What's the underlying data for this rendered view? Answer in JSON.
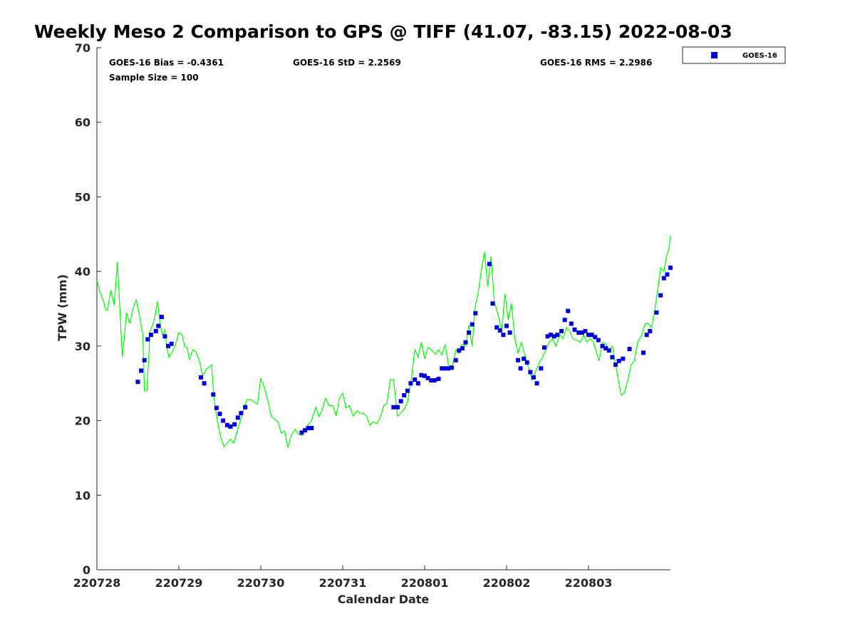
{
  "chart_data": {
    "type": "scatter",
    "title": "Weekly Meso 2 Comparison to GPS @ TIFF (41.07, -83.15) 2022-08-03",
    "xlabel": "Calendar Date",
    "ylabel": "TPW (mm)",
    "xlim": [
      0,
      7
    ],
    "ylim": [
      0,
      70
    ],
    "x_unit": "days after 220728 00Z",
    "x_ticks": [
      0,
      1,
      2,
      3,
      4,
      5,
      6
    ],
    "x_tick_labels": [
      "220728",
      "220729",
      "220730",
      "220731",
      "220801",
      "220802",
      "220803"
    ],
    "y_ticks": [
      0,
      10,
      20,
      30,
      40,
      50,
      60,
      70
    ],
    "y_tick_labels": [
      "0",
      "10",
      "20",
      "30",
      "40",
      "50",
      "60",
      "70"
    ],
    "grid": false,
    "legend_position": "outside-top-right",
    "stats": {
      "bias": "GOES-16 Bias = -0.4361",
      "std": "GOES-16 StD = 2.2569",
      "rms": "GOES-16 RMS = 2.2986",
      "sample": "Sample Size = 100"
    },
    "series": [
      {
        "name": "GOES-16",
        "kind": "scatter",
        "marker": "square",
        "color": "#0000d8",
        "points": [
          [
            0.5,
            25.2
          ],
          [
            0.54,
            26.7
          ],
          [
            0.58,
            28.1
          ],
          [
            0.62,
            30.9
          ],
          [
            0.66,
            31.5
          ],
          [
            0.72,
            32.0
          ],
          [
            0.75,
            32.7
          ],
          [
            0.79,
            33.9
          ],
          [
            0.83,
            31.3
          ],
          [
            0.87,
            30.0
          ],
          [
            0.91,
            30.3
          ],
          [
            1.27,
            25.8
          ],
          [
            1.31,
            25.0
          ],
          [
            1.42,
            23.5
          ],
          [
            1.46,
            21.7
          ],
          [
            1.5,
            20.9
          ],
          [
            1.54,
            20.0
          ],
          [
            1.59,
            19.4
          ],
          [
            1.63,
            19.2
          ],
          [
            1.68,
            19.5
          ],
          [
            1.72,
            20.4
          ],
          [
            1.76,
            21.0
          ],
          [
            1.81,
            21.8
          ],
          [
            2.5,
            18.4
          ],
          [
            2.54,
            18.7
          ],
          [
            2.58,
            19.0
          ],
          [
            2.62,
            19.0
          ],
          [
            3.62,
            21.8
          ],
          [
            3.67,
            21.8
          ],
          [
            3.71,
            22.6
          ],
          [
            3.75,
            23.4
          ],
          [
            3.79,
            24.0
          ],
          [
            3.83,
            25.0
          ],
          [
            3.88,
            25.5
          ],
          [
            3.92,
            25.0
          ],
          [
            3.96,
            26.1
          ],
          [
            4.0,
            26.0
          ],
          [
            4.04,
            25.7
          ],
          [
            4.08,
            25.4
          ],
          [
            4.12,
            25.4
          ],
          [
            4.17,
            25.6
          ],
          [
            4.21,
            27.0
          ],
          [
            4.25,
            27.0
          ],
          [
            4.29,
            27.0
          ],
          [
            4.33,
            27.1
          ],
          [
            4.38,
            28.1
          ],
          [
            4.42,
            29.4
          ],
          [
            4.46,
            29.7
          ],
          [
            4.5,
            30.5
          ],
          [
            4.54,
            31.8
          ],
          [
            4.58,
            32.9
          ],
          [
            4.62,
            34.4
          ],
          [
            4.79,
            41.0
          ],
          [
            4.83,
            35.7
          ],
          [
            4.88,
            32.5
          ],
          [
            4.92,
            32.1
          ],
          [
            4.96,
            31.5
          ],
          [
            5.0,
            32.7
          ],
          [
            5.04,
            31.8
          ],
          [
            5.14,
            28.1
          ],
          [
            5.17,
            27.0
          ],
          [
            5.21,
            28.3
          ],
          [
            5.25,
            27.8
          ],
          [
            5.29,
            26.5
          ],
          [
            5.33,
            25.8
          ],
          [
            5.37,
            25.0
          ],
          [
            5.42,
            27.0
          ],
          [
            5.46,
            29.8
          ],
          [
            5.5,
            31.3
          ],
          [
            5.54,
            31.5
          ],
          [
            5.58,
            31.3
          ],
          [
            5.62,
            31.5
          ],
          [
            5.67,
            32.0
          ],
          [
            5.71,
            33.5
          ],
          [
            5.75,
            34.7
          ],
          [
            5.79,
            33.0
          ],
          [
            5.83,
            32.2
          ],
          [
            5.88,
            31.8
          ],
          [
            5.92,
            31.8
          ],
          [
            5.96,
            32.0
          ],
          [
            6.0,
            31.5
          ],
          [
            6.04,
            31.5
          ],
          [
            6.08,
            31.2
          ],
          [
            6.12,
            30.8
          ],
          [
            6.17,
            30.0
          ],
          [
            6.21,
            29.7
          ],
          [
            6.25,
            29.4
          ],
          [
            6.29,
            28.5
          ],
          [
            6.33,
            27.5
          ],
          [
            6.37,
            28.0
          ],
          [
            6.42,
            28.3
          ],
          [
            6.5,
            29.6
          ],
          [
            6.67,
            29.1
          ],
          [
            6.71,
            31.5
          ],
          [
            6.75,
            32.0
          ],
          [
            6.83,
            34.5
          ],
          [
            6.88,
            36.8
          ],
          [
            6.92,
            39.1
          ],
          [
            6.96,
            39.6
          ],
          [
            7.0,
            40.5
          ]
        ]
      },
      {
        "name": "",
        "kind": "line",
        "color": "#00ff00",
        "points": [
          [
            0.0,
            38.8
          ],
          [
            0.04,
            37.2
          ],
          [
            0.08,
            36.0
          ],
          [
            0.11,
            34.8
          ],
          [
            0.13,
            34.8
          ],
          [
            0.17,
            37.5
          ],
          [
            0.21,
            35.5
          ],
          [
            0.25,
            41.3
          ],
          [
            0.28,
            35.0
          ],
          [
            0.31,
            28.5
          ],
          [
            0.33,
            30.5
          ],
          [
            0.36,
            34.5
          ],
          [
            0.4,
            33.0
          ],
          [
            0.44,
            35.0
          ],
          [
            0.48,
            36.2
          ],
          [
            0.52,
            34.0
          ],
          [
            0.56,
            31.5
          ],
          [
            0.58,
            24.0
          ],
          [
            0.61,
            24.0
          ],
          [
            0.63,
            28.0
          ],
          [
            0.65,
            32.0
          ],
          [
            0.68,
            32.8
          ],
          [
            0.71,
            34.0
          ],
          [
            0.74,
            36.0
          ],
          [
            0.77,
            33.0
          ],
          [
            0.8,
            31.5
          ],
          [
            0.83,
            32.2
          ],
          [
            0.85,
            30.0
          ],
          [
            0.88,
            28.5
          ],
          [
            0.92,
            29.2
          ],
          [
            0.96,
            30.2
          ],
          [
            1.0,
            31.8
          ],
          [
            1.04,
            31.5
          ],
          [
            1.07,
            30.0
          ],
          [
            1.1,
            29.8
          ],
          [
            1.13,
            28.2
          ],
          [
            1.17,
            29.5
          ],
          [
            1.21,
            29.2
          ],
          [
            1.25,
            28.0
          ],
          [
            1.29,
            26.0
          ],
          [
            1.33,
            26.8
          ],
          [
            1.37,
            27.2
          ],
          [
            1.4,
            27.5
          ],
          [
            1.43,
            23.0
          ],
          [
            1.47,
            20.0
          ],
          [
            1.51,
            17.8
          ],
          [
            1.55,
            16.5
          ],
          [
            1.59,
            17.0
          ],
          [
            1.63,
            17.5
          ],
          [
            1.67,
            17.0
          ],
          [
            1.71,
            18.5
          ],
          [
            1.75,
            20.0
          ],
          [
            1.79,
            21.5
          ],
          [
            1.83,
            22.8
          ],
          [
            1.88,
            22.8
          ],
          [
            1.92,
            22.5
          ],
          [
            1.96,
            22.2
          ],
          [
            2.0,
            25.7
          ],
          [
            2.04,
            24.5
          ],
          [
            2.08,
            23.0
          ],
          [
            2.13,
            20.5
          ],
          [
            2.17,
            20.2
          ],
          [
            2.21,
            19.8
          ],
          [
            2.25,
            18.3
          ],
          [
            2.29,
            18.6
          ],
          [
            2.33,
            16.4
          ],
          [
            2.37,
            18.0
          ],
          [
            2.42,
            18.8
          ],
          [
            2.46,
            18.2
          ],
          [
            2.5,
            18.0
          ],
          [
            2.54,
            18.8
          ],
          [
            2.58,
            19.5
          ],
          [
            2.62,
            20.0
          ],
          [
            2.67,
            21.8
          ],
          [
            2.71,
            20.5
          ],
          [
            2.75,
            21.5
          ],
          [
            2.79,
            23.0
          ],
          [
            2.83,
            22.0
          ],
          [
            2.88,
            22.0
          ],
          [
            2.92,
            20.6
          ],
          [
            2.96,
            23.0
          ],
          [
            3.0,
            23.7
          ],
          [
            3.04,
            21.7
          ],
          [
            3.08,
            22.0
          ],
          [
            3.13,
            20.6
          ],
          [
            3.17,
            21.3
          ],
          [
            3.21,
            21.0
          ],
          [
            3.25,
            21.0
          ],
          [
            3.29,
            20.6
          ],
          [
            3.33,
            19.4
          ],
          [
            3.37,
            19.8
          ],
          [
            3.42,
            19.6
          ],
          [
            3.46,
            20.5
          ],
          [
            3.5,
            22.0
          ],
          [
            3.54,
            22.3
          ],
          [
            3.58,
            25.5
          ],
          [
            3.62,
            25.5
          ],
          [
            3.67,
            20.6
          ],
          [
            3.71,
            21.0
          ],
          [
            3.75,
            21.5
          ],
          [
            3.79,
            22.5
          ],
          [
            3.83,
            25.0
          ],
          [
            3.88,
            29.5
          ],
          [
            3.92,
            28.5
          ],
          [
            3.96,
            30.5
          ],
          [
            4.0,
            28.3
          ],
          [
            4.04,
            29.8
          ],
          [
            4.08,
            29.5
          ],
          [
            4.13,
            28.9
          ],
          [
            4.17,
            29.5
          ],
          [
            4.21,
            28.8
          ],
          [
            4.25,
            30.2
          ],
          [
            4.29,
            27.5
          ],
          [
            4.33,
            27.0
          ],
          [
            4.38,
            29.5
          ],
          [
            4.42,
            29.0
          ],
          [
            4.46,
            30.2
          ],
          [
            4.5,
            30.0
          ],
          [
            4.54,
            32.8
          ],
          [
            4.58,
            30.0
          ],
          [
            4.62,
            35.5
          ],
          [
            4.65,
            37.0
          ],
          [
            4.69,
            40.0
          ],
          [
            4.73,
            42.6
          ],
          [
            4.77,
            38.0
          ],
          [
            4.81,
            42.0
          ],
          [
            4.85,
            36.0
          ],
          [
            4.9,
            34.0
          ],
          [
            4.94,
            32.0
          ],
          [
            4.98,
            37.0
          ],
          [
            5.02,
            33.5
          ],
          [
            5.06,
            35.7
          ],
          [
            5.1,
            31.0
          ],
          [
            5.14,
            29.0
          ],
          [
            5.18,
            30.5
          ],
          [
            5.23,
            28.5
          ],
          [
            5.27,
            27.0
          ],
          [
            5.31,
            25.5
          ],
          [
            5.35,
            26.5
          ],
          [
            5.4,
            27.8
          ],
          [
            5.44,
            28.5
          ],
          [
            5.48,
            29.5
          ],
          [
            5.52,
            30.5
          ],
          [
            5.56,
            31.0
          ],
          [
            5.6,
            30.0
          ],
          [
            5.65,
            31.5
          ],
          [
            5.69,
            31.0
          ],
          [
            5.73,
            32.5
          ],
          [
            5.77,
            32.0
          ],
          [
            5.81,
            31.0
          ],
          [
            5.85,
            30.8
          ],
          [
            5.9,
            30.5
          ],
          [
            5.94,
            31.5
          ],
          [
            5.98,
            30.5
          ],
          [
            6.02,
            31.0
          ],
          [
            6.06,
            30.5
          ],
          [
            6.1,
            29.0
          ],
          [
            6.13,
            28.0
          ],
          [
            6.17,
            30.5
          ],
          [
            6.21,
            30.3
          ],
          [
            6.25,
            29.5
          ],
          [
            6.29,
            30.0
          ],
          [
            6.33,
            27.5
          ],
          [
            6.37,
            25.0
          ],
          [
            6.4,
            23.4
          ],
          [
            6.44,
            23.8
          ],
          [
            6.48,
            25.5
          ],
          [
            6.52,
            27.5
          ],
          [
            6.56,
            28.0
          ],
          [
            6.6,
            30.5
          ],
          [
            6.65,
            31.5
          ],
          [
            6.69,
            33.0
          ],
          [
            6.73,
            33.0
          ],
          [
            6.77,
            32.5
          ],
          [
            6.81,
            35.0
          ],
          [
            6.85,
            38.0
          ],
          [
            6.88,
            40.5
          ],
          [
            6.92,
            40.0
          ],
          [
            6.96,
            42.5
          ],
          [
            6.98,
            43.0
          ],
          [
            7.0,
            44.8
          ]
        ]
      }
    ]
  }
}
